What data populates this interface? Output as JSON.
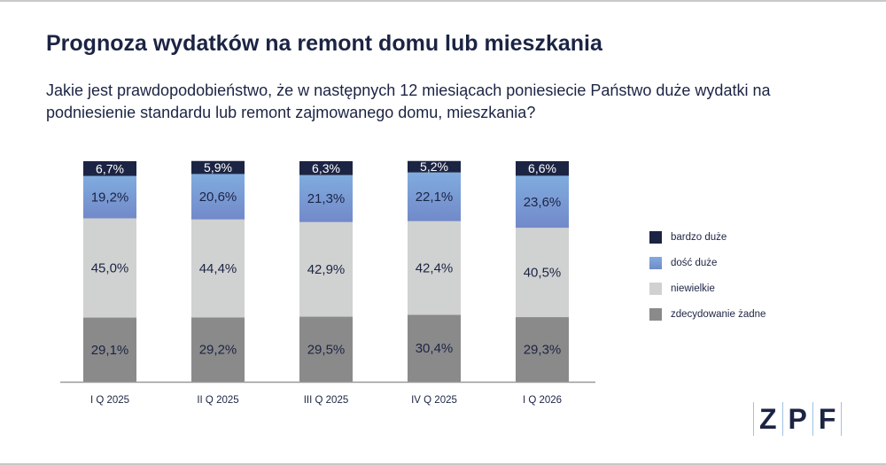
{
  "title": "Prognoza wydatków na remont domu lub mieszkania",
  "subtitle": "Jakie jest prawdopodobieństwo, że w następnych 12 miesiącach poniesiecie Państwo duże wydatki na podniesienie standardu lub remont zajmowanego domu, mieszkania?",
  "logo": [
    "Z",
    "P",
    "F"
  ],
  "chart_data": {
    "type": "bar",
    "stacked": true,
    "categories": [
      "I Q 2025",
      "II Q 2025",
      "III Q 2025",
      "IV Q 2025",
      "I Q 2026"
    ],
    "series": [
      {
        "name": "zdecydowanie żadne",
        "color": "#8a8a8a",
        "values": [
          29.1,
          29.2,
          29.5,
          30.4,
          29.3
        ],
        "labels": [
          "29,1%",
          "29,2%",
          "29,5%",
          "30,4%",
          "29,3%"
        ]
      },
      {
        "name": "niewielkie",
        "color": "#d0d2d1",
        "values": [
          45.0,
          44.4,
          42.9,
          42.4,
          40.5
        ],
        "labels": [
          "45,0%",
          "44,4%",
          "42,9%",
          "42,4%",
          "40,5%"
        ]
      },
      {
        "name": "dość duże",
        "color": "#7a9ad6",
        "values": [
          19.2,
          20.6,
          21.3,
          22.1,
          23.6
        ],
        "labels": [
          "19,2%",
          "20,6%",
          "21,3%",
          "22,1%",
          "23,6%"
        ]
      },
      {
        "name": "bardzo duże",
        "color": "#1c2444",
        "values": [
          6.7,
          5.9,
          6.3,
          5.2,
          6.6
        ],
        "labels": [
          "6,7%",
          "5,9%",
          "6,3%",
          "5,2%",
          "6,6%"
        ]
      }
    ],
    "ylim": [
      0,
      100
    ],
    "legend_position": "right",
    "legend_order": [
      "bardzo duże",
      "dość duże",
      "niewielkie",
      "zdecydowanie żadne"
    ]
  }
}
